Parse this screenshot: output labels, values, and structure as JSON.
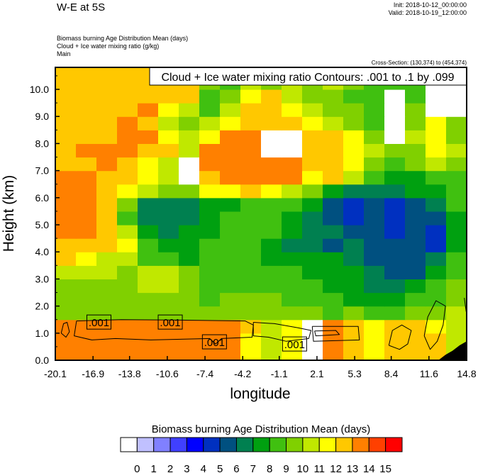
{
  "header": {
    "title": "W-E at 5S",
    "init": "Init: 2018-10-12_00:00:00",
    "valid": "Valid: 2018-10-19_12:00:00",
    "fields": [
      "Biomass burning Age Distribution Mean   (days)",
      "Cloud + Ice water mixing ratio   (g/kg)",
      "Main"
    ],
    "cross_section": "Cross-Section: (130,374) to (454,374)"
  },
  "chart_data": {
    "type": "heatmap",
    "contour_legend": "Cloud + Ice water mixing ratio Contours: .001 to .1 by .099",
    "xlabel": "longitude",
    "ylabel": "Height (km)",
    "xlim": [
      -20.1,
      14.8
    ],
    "ylim": [
      0,
      10.8
    ],
    "x_ticks": [
      "-20.1",
      "-16.9",
      "-13.8",
      "-10.6",
      "-7.4",
      "-4.2",
      "-1.1",
      "2.1",
      "5.3",
      "8.4",
      "11.6",
      "14.8"
    ],
    "y_ticks": [
      "0.0",
      "1.0",
      "2.0",
      "3.0",
      "4.0",
      "5.0",
      "6.0",
      "7.0",
      "8.0",
      "9.0",
      "10.0"
    ],
    "grid": false,
    "colorbar": {
      "title": "Biomass burning Age Distribution Mean  (days)",
      "levels": [
        "0",
        "1",
        "2",
        "3",
        "4",
        "5",
        "6",
        "7",
        "8",
        "9",
        "10",
        "11",
        "12",
        "13",
        "14",
        "15"
      ],
      "colors": [
        "#ffffff",
        "#c0c0ff",
        "#8080ff",
        "#4040ff",
        "#0000ff",
        "#0030c0",
        "#005080",
        "#008050",
        "#00a010",
        "#40c010",
        "#80d000",
        "#c0e800",
        "#ffff00",
        "#ffc800",
        "#ff8000",
        "#ff4000",
        "#ff0000"
      ],
      "placement": "bottom"
    },
    "field_note_missing": -1,
    "field_heights_bottom_km": [
      0,
      0.5,
      1,
      1.5,
      2,
      2.5,
      3,
      3.5,
      4,
      4.5,
      5,
      5.5,
      6,
      6.5,
      7,
      7.5,
      8,
      8.5,
      9,
      9.5,
      10,
      10.5
    ],
    "field_rows": [
      [
        13.5,
        13.5,
        13.5,
        13.5,
        13.5,
        13.5,
        13.5,
        13.5,
        13.5,
        11.5,
        10.5,
        11.5,
        -1,
        13.5,
        12.5,
        11.5,
        12.5,
        12.5,
        12.5,
        10.5
      ],
      [
        13.5,
        13.5,
        13.5,
        13.5,
        13.5,
        13.5,
        13.5,
        13.5,
        13.5,
        11.5,
        10.5,
        11.5,
        -1,
        13.5,
        12.5,
        11.5,
        12.5,
        12.5,
        12.5,
        10.5
      ],
      [
        13.5,
        13.5,
        13.5,
        13.5,
        13.5,
        13.5,
        13.5,
        13.5,
        13.5,
        12.5,
        10.5,
        11.5,
        -1,
        13.5,
        12.5,
        11.5,
        12.5,
        12.5,
        11.5,
        10.5
      ],
      [
        9.5,
        9.5,
        9.5,
        9.5,
        9.5,
        9.5,
        9.5,
        9.5,
        9.5,
        9.5,
        9.5,
        9.5,
        9.5,
        8.5,
        9.5,
        8.5,
        8.5,
        9.5,
        9.5,
        10.5
      ],
      [
        9.5,
        9.5,
        9.5,
        9.5,
        9.5,
        9.5,
        9.5,
        8.5,
        9.5,
        9.5,
        9.5,
        8.5,
        8.5,
        8.5,
        7.5,
        7.5,
        7.5,
        8.5,
        8.5,
        9.5
      ],
      [
        9.5,
        9.5,
        9.5,
        9.5,
        10.5,
        10.5,
        9.5,
        8.5,
        8.5,
        8.5,
        8.5,
        8.5,
        8.5,
        7.5,
        7.5,
        6.5,
        6.5,
        7.5,
        8.5,
        9.5
      ],
      [
        10.5,
        10.5,
        10.5,
        9.5,
        10.5,
        10.5,
        9.5,
        8.5,
        8.5,
        8.5,
        8.5,
        8.5,
        7.5,
        7.5,
        7.5,
        6.5,
        5.5,
        5.5,
        7.5,
        8.5
      ],
      [
        12.5,
        11.5,
        10.5,
        10.5,
        8.5,
        8.5,
        7.5,
        8.5,
        8.5,
        8.5,
        7.5,
        7.5,
        7.5,
        7.5,
        6.5,
        5.5,
        5.5,
        5.5,
        6.5,
        8.5
      ],
      [
        12.5,
        12.5,
        12.5,
        11.5,
        8.5,
        7.5,
        7.5,
        8.5,
        8.5,
        8.5,
        7.5,
        6.5,
        6.5,
        5.5,
        6.5,
        5.5,
        5.5,
        5.5,
        4.5,
        7.5
      ],
      [
        13.5,
        13.5,
        12.5,
        10.5,
        7.5,
        6.5,
        7.5,
        7.5,
        8.5,
        8.5,
        8.5,
        7.5,
        6.5,
        6.5,
        5.5,
        5.5,
        4.5,
        5.5,
        4.5,
        7.5
      ],
      [
        13.5,
        13.5,
        12.5,
        8.5,
        6.5,
        6.5,
        6.5,
        7.5,
        8.5,
        8.5,
        8.5,
        7.5,
        6.5,
        5.5,
        4.5,
        5.5,
        4.5,
        5.5,
        5.5,
        7.5
      ],
      [
        13.5,
        13.5,
        12.5,
        9.5,
        6.5,
        6.5,
        6.5,
        7.5,
        7.5,
        8.5,
        8.5,
        8.5,
        7.5,
        5.5,
        4.5,
        5.5,
        4.5,
        5.5,
        6.5,
        8.5
      ],
      [
        13.5,
        13.5,
        12.5,
        11.5,
        10.5,
        9.5,
        9.5,
        11.5,
        11.5,
        12.5,
        11.5,
        10.5,
        9.5,
        7.5,
        6.5,
        6.5,
        6.5,
        7.5,
        7.5,
        8.5
      ],
      [
        13.5,
        13.5,
        12.5,
        12.5,
        11.5,
        10.5,
        -1,
        12.5,
        13.5,
        13.5,
        13.5,
        13.5,
        11.5,
        12.5,
        10.5,
        8.5,
        7.5,
        7.5,
        8.5,
        8.5
      ],
      [
        12.5,
        12.5,
        13.5,
        12.5,
        11.5,
        10.5,
        -1,
        13.5,
        13.5,
        13.5,
        13.5,
        13.5,
        12.5,
        12.5,
        11.5,
        9.5,
        8.5,
        9.5,
        10.5,
        9.5
      ],
      [
        12.5,
        13.5,
        13.5,
        13.5,
        12.5,
        12.5,
        10.5,
        13.5,
        13.5,
        13.5,
        -1,
        -1,
        12.5,
        12.5,
        11.5,
        10.5,
        9.5,
        9.5,
        11.5,
        10.5
      ],
      [
        12.5,
        12.5,
        12.5,
        13.5,
        13.5,
        11.5,
        10.5,
        11.5,
        13.5,
        13.5,
        -1,
        -1,
        12.5,
        12.5,
        11.5,
        9.5,
        -1,
        10.5,
        11.5,
        9.5
      ],
      [
        12.5,
        12.5,
        12.5,
        13.5,
        12.5,
        10.5,
        9.5,
        10.5,
        11.5,
        12.5,
        12.5,
        12.5,
        11.5,
        10.5,
        9.5,
        8.5,
        -1,
        9.5,
        11.5,
        9.5
      ],
      [
        12.5,
        12.5,
        12.5,
        12.5,
        13.5,
        11.5,
        10.5,
        8.5,
        10.5,
        12.5,
        12.5,
        11.5,
        10.5,
        9.5,
        9.5,
        8.5,
        -1,
        9.5,
        -1,
        -1
      ],
      [
        12.5,
        12.5,
        12.5,
        12.5,
        12.5,
        12.5,
        12.5,
        8.5,
        9.5,
        11.5,
        12.5,
        10.5,
        9.5,
        9.5,
        8.5,
        8.5,
        -1,
        8.5,
        -1,
        -1
      ],
      [
        12.5,
        12.5,
        12.5,
        12.5,
        12.5,
        12.5,
        12.5,
        9.5,
        8.5,
        10.5,
        9.5,
        10.5,
        9.5,
        10.5,
        9.5,
        8.5,
        8.5,
        8.5,
        -1,
        -1
      ],
      [
        12.5,
        12.5,
        12.5,
        12.5,
        12.5,
        12.5,
        12.5,
        9.5,
        8.5,
        10.5,
        9.5,
        9.5,
        8.5,
        9.5,
        8.5,
        8.5,
        8.5,
        9.5,
        -1,
        -1
      ]
    ],
    "contours": [
      {
        "level": ".001",
        "points": [
          [
            -18.3,
            1.45
          ],
          [
            -14.5,
            1.5
          ],
          [
            -9,
            1.48
          ],
          [
            -4,
            1.45
          ],
          [
            -3.3,
            1.3
          ],
          [
            -3.4,
            0.85
          ],
          [
            -6,
            0.8
          ],
          [
            -6.5,
            0.6
          ],
          [
            -7,
            0.8
          ],
          [
            -12,
            0.75
          ],
          [
            -15,
            0.8
          ],
          [
            -17,
            0.75
          ],
          [
            -18.5,
            0.9
          ],
          [
            -18.3,
            1.45
          ]
        ]
      },
      {
        "level": ".001",
        "points": [
          [
            -19.6,
            1.0
          ],
          [
            -19.4,
            1.35
          ],
          [
            -19.1,
            1.4
          ],
          [
            -18.9,
            1.05
          ],
          [
            -19.2,
            0.85
          ],
          [
            -19.6,
            1.0
          ]
        ]
      },
      {
        "level": ".001",
        "points": [
          [
            -3.3,
            1.4
          ],
          [
            -1.5,
            1.35
          ],
          [
            0.5,
            1.2
          ],
          [
            1.6,
            1.1
          ],
          [
            1.4,
            0.8
          ],
          [
            -0.5,
            0.7
          ],
          [
            -2,
            0.85
          ],
          [
            -3.3,
            0.9
          ],
          [
            -3.3,
            1.4
          ]
        ]
      },
      {
        "level": ".001",
        "points": [
          [
            1.7,
            1.25
          ],
          [
            5.6,
            1.25
          ],
          [
            5.7,
            0.75
          ],
          [
            1.8,
            0.7
          ],
          [
            1.7,
            1.25
          ]
        ]
      },
      {
        "level": ".001",
        "points": [
          [
            1.9,
            1.08
          ],
          [
            3.7,
            1.1
          ],
          [
            4.0,
            0.95
          ],
          [
            2.0,
            0.9
          ],
          [
            1.9,
            1.08
          ]
        ]
      },
      {
        "level": ".001",
        "points": [
          [
            8.2,
            0.55
          ],
          [
            8.5,
            1.1
          ],
          [
            9.3,
            1.3
          ],
          [
            10.1,
            1.1
          ],
          [
            9.8,
            0.6
          ],
          [
            9.1,
            0.4
          ],
          [
            8.2,
            0.55
          ]
        ]
      },
      {
        "level": ".001",
        "points": [
          [
            11.2,
            0.9
          ],
          [
            11.5,
            1.6
          ],
          [
            12.2,
            2.2
          ],
          [
            13.0,
            2.0
          ],
          [
            12.8,
            1.3
          ],
          [
            12.3,
            0.7
          ],
          [
            11.7,
            0.4
          ],
          [
            11.2,
            0.9
          ]
        ]
      },
      {
        "level": ".001",
        "points": [
          [
            14.6,
            2.3
          ],
          [
            14.75,
            1.8
          ],
          [
            14.8,
            2.5
          ]
        ]
      }
    ],
    "contour_labels": [
      {
        "text": ".001",
        "lon": -16.4,
        "height": 1.41
      },
      {
        "text": ".001",
        "lon": -10.35,
        "height": 1.41
      },
      {
        "text": ".001",
        "lon": -6.6,
        "height": 0.68
      },
      {
        "text": ".001",
        "lon": 0.2,
        "height": 0.6
      }
    ],
    "terrain": [
      [
        12.4,
        0
      ],
      [
        13.0,
        0.2
      ],
      [
        13.6,
        0.35
      ],
      [
        14.2,
        0.55
      ],
      [
        14.8,
        0.7
      ],
      [
        14.8,
        0
      ]
    ]
  }
}
